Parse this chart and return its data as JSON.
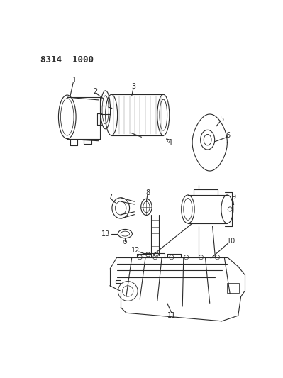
{
  "title": "8314  1000",
  "background_color": "#ffffff",
  "fig_width": 3.99,
  "fig_height": 5.33,
  "dpi": 100,
  "line_color": "#2a2a2a",
  "label_fontsize": 7,
  "title_fontsize": 9
}
